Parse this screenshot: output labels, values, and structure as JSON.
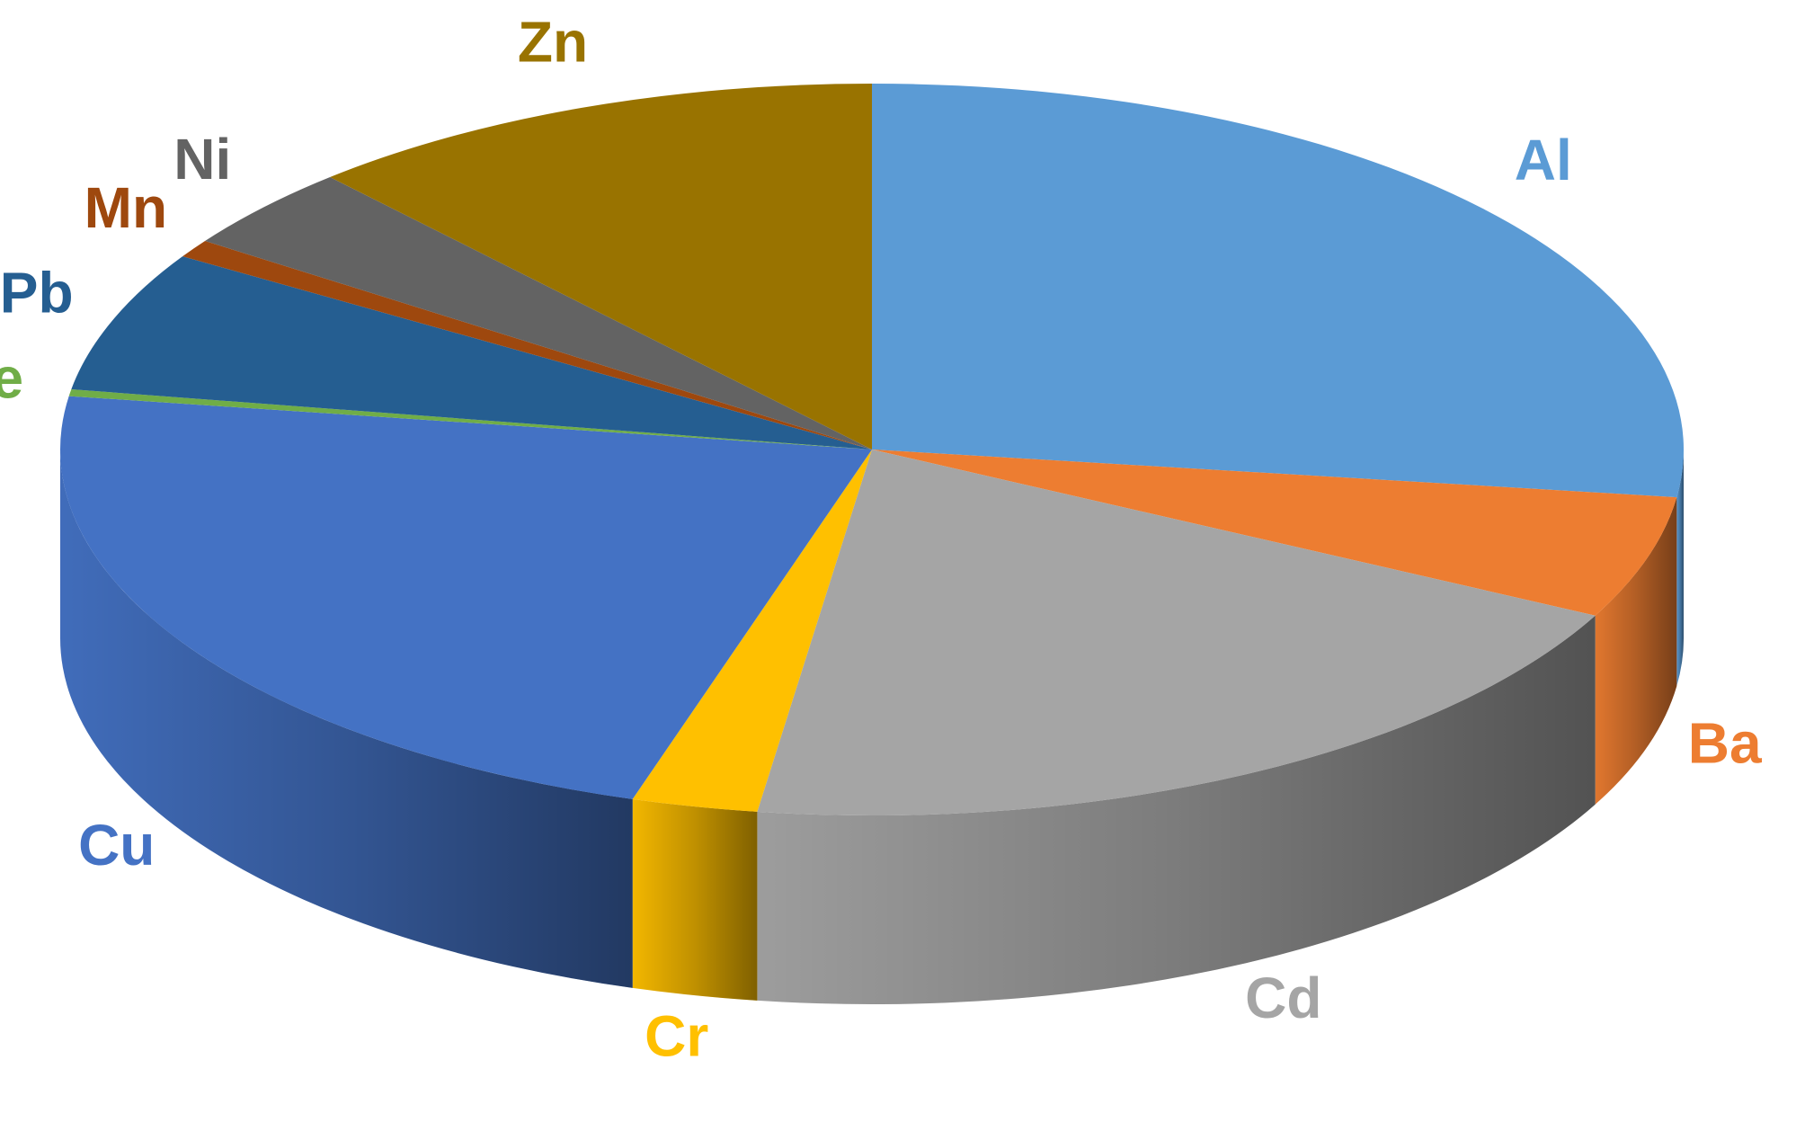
{
  "chart_data": {
    "type": "pie",
    "categories": [
      "Al",
      "Ba",
      "Cd",
      "Cr",
      "Cu",
      "Fe",
      "Pb",
      "Mn",
      "Ni",
      "Zn"
    ],
    "values": [
      27,
      5.4,
      19.7,
      2.5,
      22.5,
      0.3,
      6.2,
      0.8,
      3.7,
      11.6
    ],
    "colors": [
      "#5b9bd5",
      "#ed7d31",
      "#a5a5a5",
      "#ffc000",
      "#4472c4",
      "#70ad47",
      "#255e91",
      "#9e480e",
      "#636363",
      "#997300"
    ]
  }
}
